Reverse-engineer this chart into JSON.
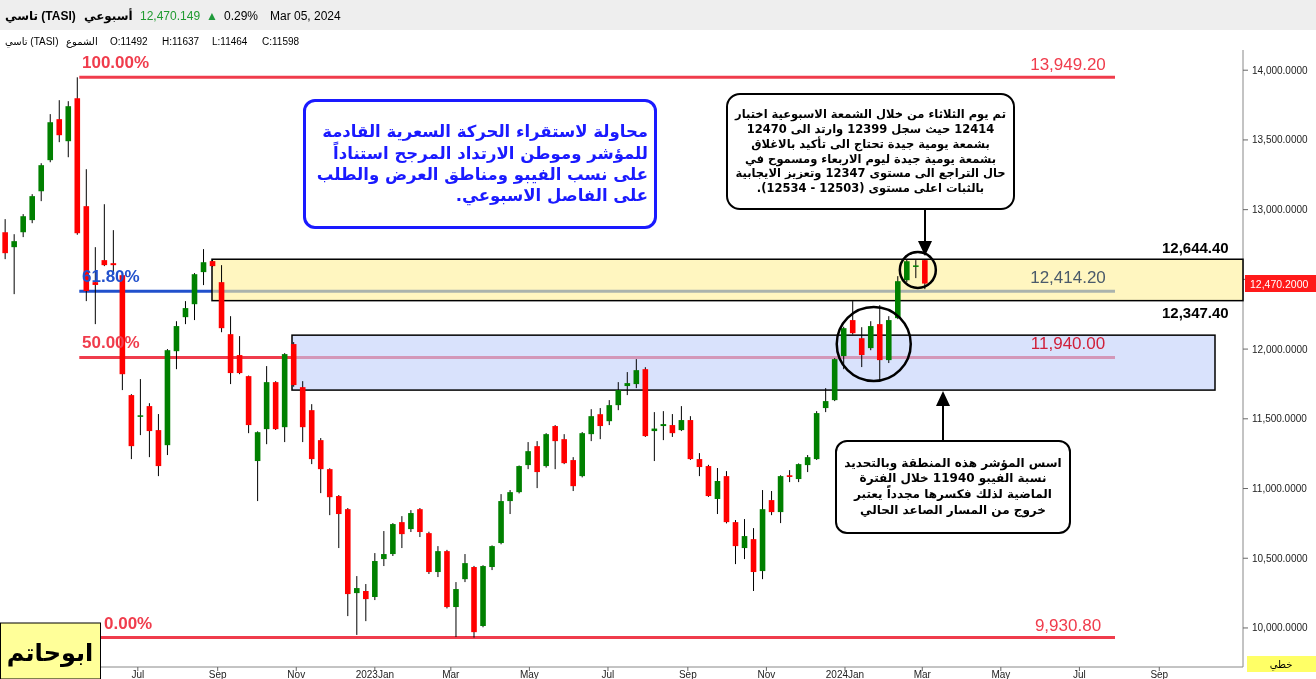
{
  "chart_data": {
    "type": "candlestick",
    "x": [
      "2022-03-20",
      "2022-03-27",
      "2022-04-03",
      "2022-04-10",
      "2022-04-17",
      "2022-04-24",
      "2022-05-01",
      "2022-05-08",
      "2022-05-15",
      "2022-05-22",
      "2022-05-29",
      "2022-06-05",
      "2022-06-12",
      "2022-06-19",
      "2022-06-26",
      "2022-07-03",
      "2022-07-10",
      "2022-07-17",
      "2022-07-24",
      "2022-07-31",
      "2022-08-07",
      "2022-08-14",
      "2022-08-21",
      "2022-08-28",
      "2022-09-04",
      "2022-09-11",
      "2022-09-18",
      "2022-09-25",
      "2022-10-02",
      "2022-10-09",
      "2022-10-16",
      "2022-10-23",
      "2022-10-30",
      "2022-11-06",
      "2022-11-13",
      "2022-11-20",
      "2022-11-27",
      "2022-12-04",
      "2022-12-11",
      "2022-12-18",
      "2022-12-25",
      "2023-01-01",
      "2023-01-08",
      "2023-01-15",
      "2023-01-22",
      "2023-01-29",
      "2023-02-05",
      "2023-02-12",
      "2023-02-19",
      "2023-02-26",
      "2023-03-05",
      "2023-03-12",
      "2023-03-19",
      "2023-03-26",
      "2023-04-02",
      "2023-04-09",
      "2023-04-16",
      "2023-04-23",
      "2023-04-30",
      "2023-05-07",
      "2023-05-14",
      "2023-05-21",
      "2023-05-28",
      "2023-06-04",
      "2023-06-11",
      "2023-06-18",
      "2023-06-25",
      "2023-07-02",
      "2023-07-09",
      "2023-07-16",
      "2023-07-23",
      "2023-07-30",
      "2023-08-06",
      "2023-08-13",
      "2023-08-20",
      "2023-08-27",
      "2023-09-03",
      "2023-09-10",
      "2023-09-17",
      "2023-09-24",
      "2023-10-01",
      "2023-10-08",
      "2023-10-15",
      "2023-10-22",
      "2023-10-29",
      "2023-11-05",
      "2023-11-12",
      "2023-11-19",
      "2023-11-26",
      "2023-12-03",
      "2023-12-10",
      "2023-12-17",
      "2023-12-24",
      "2023-12-31",
      "2024-01-07",
      "2024-01-14",
      "2024-01-21",
      "2024-01-28",
      "2024-02-04",
      "2024-02-11",
      "2024-02-18",
      "2024-02-25",
      "2024-03-03"
    ],
    "ohlc": [
      [
        12838,
        12932,
        12645,
        12688
      ],
      [
        12731,
        12824,
        12394,
        12774
      ],
      [
        12838,
        12968,
        12803,
        12953
      ],
      [
        12925,
        13111,
        12903,
        13097
      ],
      [
        13132,
        13333,
        13061,
        13319
      ],
      [
        13355,
        13685,
        13340,
        13627
      ],
      [
        13649,
        13785,
        13484,
        13534
      ],
      [
        13491,
        13778,
        13376,
        13742
      ],
      [
        13799,
        13949.2,
        12820,
        12831
      ],
      [
        13025,
        13290,
        12344,
        12416
      ],
      [
        12480,
        12731,
        12179,
        12460
      ],
      [
        12638,
        13039,
        12595,
        12602
      ],
      [
        12616,
        12853,
        12545,
        12602
      ],
      [
        12530,
        12540,
        11706,
        11820
      ],
      [
        11670,
        11677,
        11211,
        11304
      ],
      [
        11514,
        11785,
        11383,
        11525
      ],
      [
        11591,
        11612,
        11225,
        11412
      ],
      [
        11419,
        11534,
        11089,
        11161
      ],
      [
        11311,
        12000,
        11240,
        11992
      ],
      [
        11985,
        12200,
        11856,
        12165
      ],
      [
        12229,
        12344,
        12179,
        12294
      ],
      [
        12322,
        12545,
        12208,
        12537
      ],
      [
        12552,
        12717,
        12459,
        12623
      ],
      [
        12631,
        12640,
        12590,
        12595
      ],
      [
        12480,
        12602,
        12121,
        12150
      ],
      [
        12107,
        12236,
        11749,
        11828
      ],
      [
        11957,
        12093,
        11820,
        11828
      ],
      [
        11806,
        11810,
        11397,
        11455
      ],
      [
        11197,
        11410,
        10910,
        11404
      ],
      [
        11426,
        11878,
        11318,
        11763
      ],
      [
        11763,
        11770,
        11420,
        11426
      ],
      [
        11440,
        11971,
        11333,
        11964
      ],
      [
        12036,
        12050,
        11730,
        11742
      ],
      [
        11727,
        11770,
        11333,
        11440
      ],
      [
        11562,
        11605,
        11175,
        11211
      ],
      [
        11347,
        11362,
        10967,
        11139
      ],
      [
        11139,
        11145,
        10809,
        10938
      ],
      [
        10946,
        10953,
        10573,
        10817
      ],
      [
        10852,
        10860,
        10085,
        10243
      ],
      [
        10250,
        10372,
        9950,
        10286
      ],
      [
        10265,
        10315,
        10049,
        10207
      ],
      [
        10222,
        10537,
        10200,
        10480
      ],
      [
        10494,
        10695,
        10444,
        10530
      ],
      [
        10530,
        10752,
        10516,
        10745
      ],
      [
        10759,
        10802,
        10573,
        10673
      ],
      [
        10709,
        10845,
        10688,
        10824
      ],
      [
        10852,
        10860,
        10652,
        10688
      ],
      [
        10680,
        10690,
        10387,
        10401
      ],
      [
        10401,
        10587,
        10365,
        10551
      ],
      [
        10551,
        10560,
        10140,
        10150
      ],
      [
        10150,
        10329,
        9935,
        10279
      ],
      [
        10350,
        10530,
        10329,
        10465
      ],
      [
        10437,
        10445,
        9930.8,
        9970
      ],
      [
        10014,
        10450,
        10005,
        10444
      ],
      [
        10437,
        10592,
        10415,
        10587
      ],
      [
        10609,
        10960,
        10600,
        10910
      ],
      [
        10910,
        10989,
        10817,
        10974
      ],
      [
        10974,
        11165,
        10965,
        11161
      ],
      [
        11168,
        11333,
        11139,
        11268
      ],
      [
        11304,
        11340,
        11003,
        11118
      ],
      [
        11161,
        11397,
        11150,
        11390
      ],
      [
        11448,
        11455,
        11139,
        11340
      ],
      [
        11354,
        11390,
        11175,
        11182
      ],
      [
        11204,
        11225,
        10982,
        11017
      ],
      [
        11089,
        11405,
        11080,
        11397
      ],
      [
        11390,
        11569,
        11340,
        11519
      ],
      [
        11533,
        11577,
        11354,
        11448
      ],
      [
        11483,
        11634,
        11455,
        11598
      ],
      [
        11598,
        11763,
        11562,
        11706
      ],
      [
        11735,
        11835,
        11670,
        11756
      ],
      [
        11749,
        11928,
        11720,
        11849
      ],
      [
        11856,
        11870,
        11370,
        11376
      ],
      [
        11412,
        11548,
        11197,
        11430
      ],
      [
        11448,
        11555,
        11347,
        11462
      ],
      [
        11455,
        11534,
        11370,
        11397
      ],
      [
        11419,
        11591,
        11412,
        11491
      ],
      [
        11491,
        11519,
        11205,
        11211
      ],
      [
        11211,
        11254,
        11089,
        11154
      ],
      [
        11161,
        11170,
        10940,
        10946
      ],
      [
        10925,
        11147,
        10817,
        11054
      ],
      [
        11089,
        11125,
        10750,
        10759
      ],
      [
        10759,
        10774,
        10458,
        10587
      ],
      [
        10573,
        10781,
        10494,
        10659
      ],
      [
        10637,
        10716,
        10265,
        10401
      ],
      [
        10408,
        10989,
        10350,
        10852
      ],
      [
        10917,
        10982,
        10809,
        10831
      ],
      [
        10831,
        11095,
        10752,
        11089
      ],
      [
        11095,
        11132,
        11046,
        11083
      ],
      [
        11068,
        11180,
        11046,
        11175
      ],
      [
        11168,
        11240,
        11118,
        11225
      ],
      [
        11211,
        11555,
        11205,
        11541
      ],
      [
        11577,
        11720,
        11548,
        11627
      ],
      [
        11634,
        11935,
        11627,
        11928
      ],
      [
        11950,
        12160,
        11856,
        12150
      ],
      [
        12208,
        12344,
        12105,
        12114
      ],
      [
        12078,
        12157,
        11871,
        11957
      ],
      [
        12007,
        12200,
        11992,
        12165
      ],
      [
        12179,
        12315,
        11777,
        11921
      ],
      [
        11921,
        12236,
        11900,
        12208
      ],
      [
        12222,
        12523,
        12215,
        12487
      ],
      [
        12494,
        12644.4,
        12480,
        12630
      ],
      [
        12590,
        12638,
        12509,
        12600
      ],
      [
        12638,
        12641,
        12430,
        12470
      ]
    ],
    "xlim": [
      "2022-03-16",
      "2024-11-05"
    ],
    "xticks": [
      {
        "value": "2022-07-01",
        "label": "Jul"
      },
      {
        "value": "2022-09-01",
        "label": "Sep"
      },
      {
        "value": "2022-11-01",
        "label": "Nov"
      },
      {
        "value": "2023-01-01",
        "label": "2023Jan"
      },
      {
        "value": "2023-03-01",
        "label": "Mar"
      },
      {
        "value": "2023-05-01",
        "label": "May"
      },
      {
        "value": "2023-07-01",
        "label": "Jul"
      },
      {
        "value": "2023-09-01",
        "label": "Sep"
      },
      {
        "value": "2023-11-01",
        "label": "Nov"
      },
      {
        "value": "2024-01-01",
        "label": "2024Jan"
      },
      {
        "value": "2024-03-01",
        "label": "Mar"
      },
      {
        "value": "2024-05-01",
        "label": "May"
      },
      {
        "value": "2024-07-01",
        "label": "Jul"
      },
      {
        "value": "2024-09-01",
        "label": "Sep"
      }
    ],
    "ylim": [
      9720,
      14145
    ],
    "yticks": [
      {
        "value": 10000,
        "label": "10,000.0000"
      },
      {
        "value": 10500,
        "label": "10,500.0000"
      },
      {
        "value": 11000,
        "label": "11,000.0000"
      },
      {
        "value": 11500,
        "label": "11,500.0000"
      },
      {
        "value": 12000,
        "label": "12,000.0000"
      },
      {
        "value": 12500,
        "label": null
      },
      {
        "value": 13000,
        "label": "13,000.0000"
      },
      {
        "value": 13500,
        "label": "13,500.0000"
      },
      {
        "value": 14000,
        "label": "14,000.0000"
      }
    ],
    "ref_lines": [
      {
        "axis": "y",
        "value": 13949.2,
        "label": "13,949.20",
        "color": "#f03c4c"
      },
      {
        "axis": "y",
        "value": 12414.2,
        "label": "12,414.20",
        "color": "#2150cc"
      },
      {
        "axis": "y",
        "value": 11940,
        "label": "11,940.00",
        "color": "#f03c4c"
      },
      {
        "axis": "y",
        "value": 9930.8,
        "label": "9,930.80",
        "color": "#f03c4c"
      }
    ],
    "bands": [
      {
        "axis": "y",
        "from": 12347.4,
        "to": 12644.4,
        "color": "#fff09a"
      },
      {
        "axis": "y",
        "from": 11706,
        "to": 12100,
        "color": "#c2d0fa"
      }
    ],
    "annotations": [
      "تاسي (TASI)",
      "أسبوعي",
      "12,470.149",
      "▲",
      "0.29%",
      "Mar 05, 2024",
      "تاسي (TASI)",
      "الشموع",
      "O:11492",
      "H:11637",
      "L:11464",
      "C:11598",
      "100.00%",
      {
        "text": "12,644.40",
        "x": "2024-09-29",
        "y": 12644.4
      },
      "61.80%",
      {
        "text": "12,347.40",
        "x": "2024-09-29",
        "y": 12347.4
      },
      "50.00%",
      "0.00%",
      "محاولة لاستقراء الحركة السعرية القادمة للمؤشر وموطن الارتداد المرجح استناداً على نسب الفيبو ومناطق العرض والطلب على الفاصل الاسبوعي.",
      "تم يوم الثلاثاء من خلال الشمعة الاسبوعية اختبار 12414 حيث سجل 12399 وارتد الى 12470 بشمعة يومية جيدة تحتاج الى تأكيد بالاغلاق بشمعة يومية جيدة ليوم الاربعاء ومسموح في حال التراجع الى مستوى 12347 وتعزيز الايجابية بالثبات اعلى مستوى (12503 - 12534).",
      "اسس المؤشر هذه المنطقة وبالتحديد نسبة الفيبو 11940 خلال الفترة الماضية لذلك فكسرها مجدداً يعتبر خروج من المسار الصاعد الحالي",
      "12,470.2000",
      "خطي",
      "ابوحاتم"
    ]
  }
}
